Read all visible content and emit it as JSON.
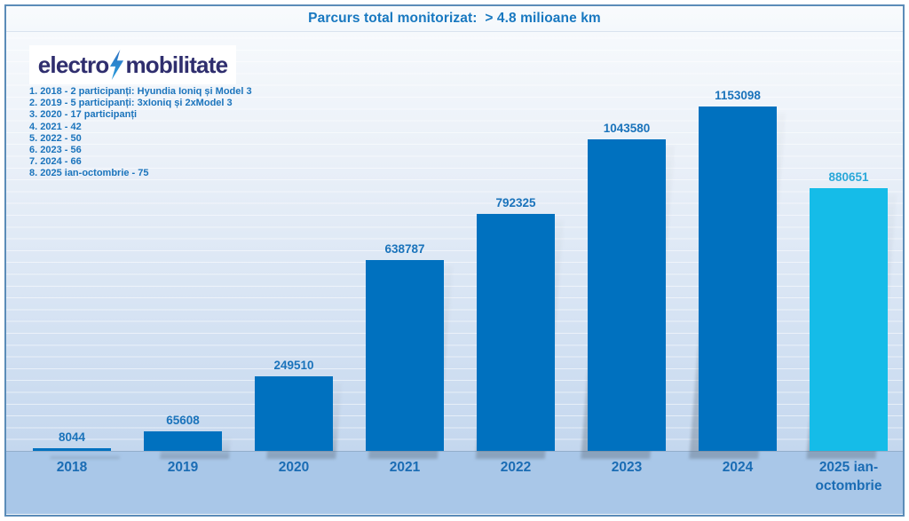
{
  "header": {
    "title": "Parcurs total monitorizat:  > 4.8 milioane km"
  },
  "logo": {
    "part1": "electro",
    "part2": "mobilitate",
    "icon": "lightning-bolt"
  },
  "notes": {
    "items": [
      "1. 2018 - 2 participanți: Hyundia Ioniq și Model 3",
      "2. 2019 - 5 participanți: 3xIoniq și 2xModel 3",
      "3. 2020 - 17 participanți",
      "4. 2021 - 42",
      "5. 2022 - 50",
      "6. 2023 - 56",
      "7. 2024 - 66",
      "8. 2025 ian-octombrie - 75"
    ]
  },
  "chart_data": {
    "type": "bar",
    "title": "Parcurs total monitorizat:  > 4.8 milioane km",
    "categories": [
      "2018",
      "2019",
      "2020",
      "2021",
      "2022",
      "2023",
      "2024",
      "2025 ian-octombrie"
    ],
    "values": [
      8044,
      65608,
      249510,
      638787,
      792325,
      1043580,
      1153098,
      880651
    ],
    "bar_colors": [
      "#0071bf",
      "#0071bf",
      "#0071bf",
      "#0071bf",
      "#0071bf",
      "#0071bf",
      "#0071bf",
      "#15bce8"
    ],
    "value_label_colors": [
      "#1a73bb",
      "#1a73bb",
      "#1a73bb",
      "#1a73bb",
      "#1a73bb",
      "#1a73bb",
      "#1a73bb",
      "#2aa8d9"
    ],
    "xlabel": "",
    "ylabel": "",
    "ylim": [
      0,
      1200000
    ],
    "grid": "subtle horizontal white gridlines",
    "legend": "none",
    "units": "km"
  },
  "colors": {
    "frame_border": "#5b8cb8",
    "axis_band": "#a9c7e8",
    "title_blue": "#1878c0",
    "logo_navy": "#2f2e6e",
    "bar_primary": "#0071bf",
    "bar_highlight": "#15bce8"
  }
}
